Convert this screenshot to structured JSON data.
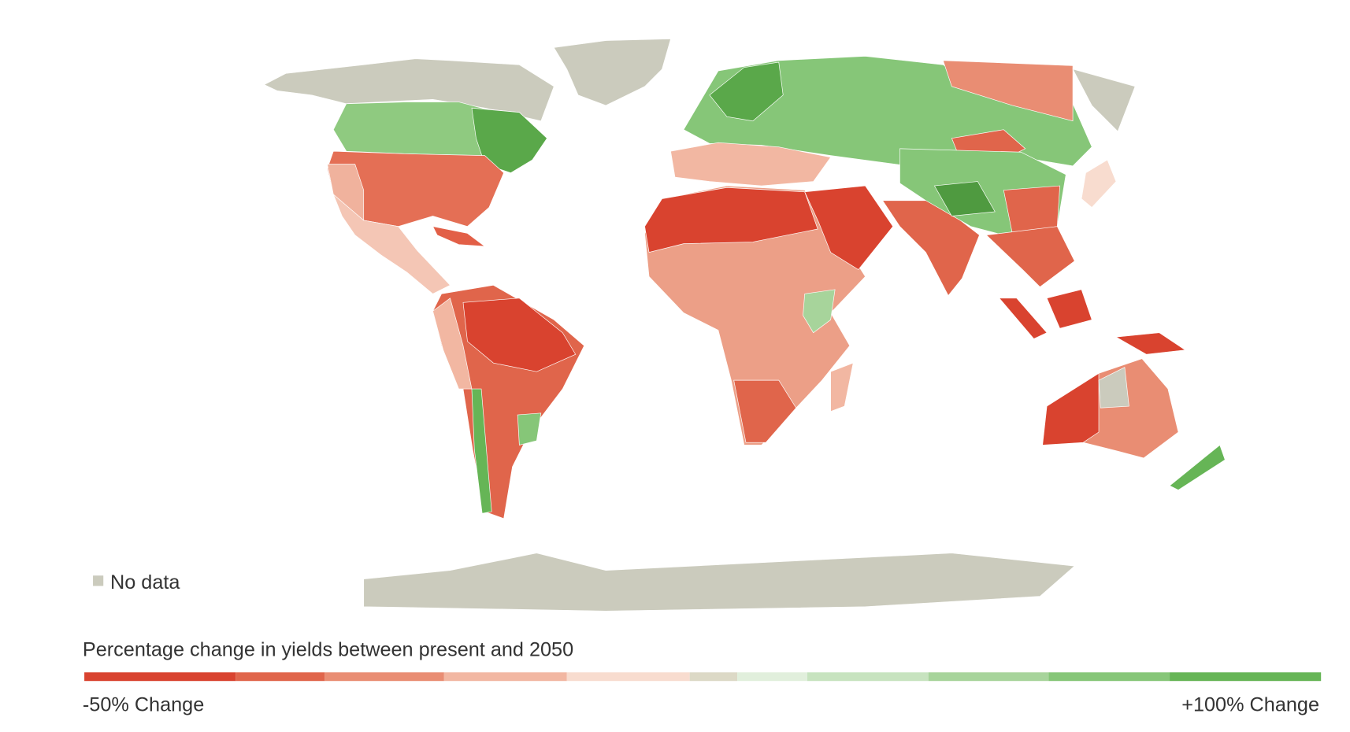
{
  "legend": {
    "no_data": "No data",
    "no_data_color": "#cbcbbd",
    "title": "Percentage change in yields between present and 2050",
    "min_label": "-50% Change",
    "max_label": "+100% Change",
    "scale_colors": [
      "#d9432f",
      "#e0654b",
      "#e98d73",
      "#f2b7a2",
      "#f8dccf",
      "#dcd9c6",
      "#e1efdc",
      "#c7e3bf",
      "#a7d49b",
      "#86c678",
      "#66b556"
    ]
  }
}
